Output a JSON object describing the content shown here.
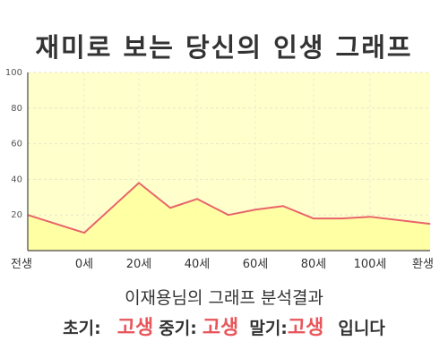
{
  "title": "재미로 보는 당신의 인생 그래프",
  "summary": "이재용님의 그래프 분석결과",
  "result": {
    "early_label": "초기:",
    "early_value": "고생",
    "mid_label": "중기:",
    "mid_value": "고생",
    "late_label": "말기:",
    "late_value": "고생",
    "suffix": "입니다"
  },
  "colors": {
    "line": "#e8646a",
    "fill": "#ffffcc",
    "accent_text": "#e8555a"
  },
  "chart_data": {
    "type": "area",
    "title": "",
    "xlabel": "",
    "ylabel": "",
    "ylim": [
      0,
      100
    ],
    "yticks": [
      20,
      40,
      60,
      80,
      100
    ],
    "grid": true,
    "legend": "none",
    "x_tick_labels": [
      "전생",
      "0세",
      "20세",
      "40세",
      "60세",
      "80세",
      "100세",
      "환생"
    ],
    "series": [
      {
        "points": [
          [
            "전생",
            20
          ],
          [
            "0세",
            10
          ],
          [
            "20세",
            38
          ],
          [
            "30세",
            24
          ],
          [
            "40세",
            29
          ],
          [
            "50세",
            20
          ],
          [
            "60세",
            23
          ],
          [
            "70세",
            25
          ],
          [
            "80세",
            18
          ],
          [
            "90세",
            18
          ],
          [
            "100세",
            19
          ],
          [
            "환생",
            15
          ]
        ]
      }
    ]
  }
}
